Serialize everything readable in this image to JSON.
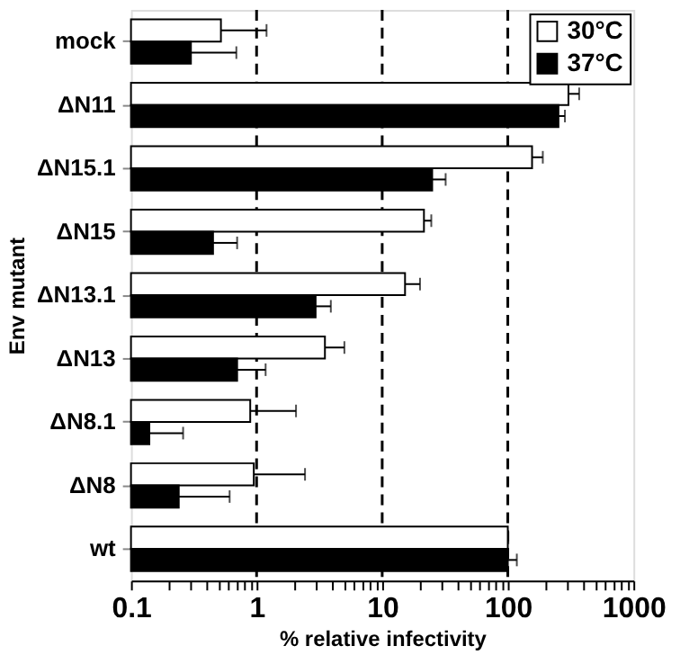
{
  "chart_data": {
    "type": "bar",
    "orientation": "horizontal",
    "xlabel": "% relative infectivity",
    "ylabel": "Env mutant",
    "categories": [
      "mock",
      "ΔN11",
      "ΔN15.1",
      "ΔN15",
      "ΔN13.1",
      "ΔN13",
      "ΔN8.1",
      "ΔN8",
      "wt"
    ],
    "series": [
      {
        "name": "30°C",
        "color": "#ffffff",
        "values": [
          0.52,
          304,
          156,
          21.5,
          15.2,
          3.5,
          0.89,
          0.95,
          100
        ],
        "errors": [
          [
            0.52,
            1.2
          ],
          [
            304,
            370
          ],
          [
            156,
            190
          ],
          [
            21.5,
            24.6
          ],
          [
            15.2,
            20
          ],
          [
            3.5,
            5.0
          ],
          [
            0.89,
            2.06
          ],
          [
            0.95,
            2.43
          ],
          [
            100,
            101
          ]
        ]
      },
      {
        "name": "37°C",
        "color": "#000000",
        "values": [
          0.3,
          253,
          25,
          0.45,
          2.95,
          0.7,
          0.14,
          0.24,
          100
        ],
        "errors": [
          [
            0.3,
            0.69
          ],
          [
            253,
            285
          ],
          [
            25,
            32
          ],
          [
            0.45,
            0.7
          ],
          [
            2.95,
            3.9
          ],
          [
            0.7,
            1.18
          ],
          [
            0.14,
            0.26
          ],
          [
            0.24,
            0.61
          ],
          [
            100,
            118
          ]
        ]
      }
    ],
    "log": "x",
    "xlim": [
      0.1,
      1000
    ],
    "xticks": [
      0.1,
      {
        "value": 0.2,
        "label": null
      },
      {
        "value": 0.3,
        "label": null
      },
      {
        "value": 0.4,
        "label": null
      },
      {
        "value": 0.5,
        "label": null
      },
      {
        "value": 0.6,
        "label": null
      },
      {
        "value": 0.7,
        "label": null
      },
      {
        "value": 0.8,
        "label": null
      },
      {
        "value": 0.9,
        "label": null
      },
      1,
      {
        "value": 2,
        "label": null
      },
      {
        "value": 3,
        "label": null
      },
      {
        "value": 4,
        "label": null
      },
      {
        "value": 5,
        "label": null
      },
      {
        "value": 6,
        "label": null
      },
      {
        "value": 7,
        "label": null
      },
      {
        "value": 8,
        "label": null
      },
      {
        "value": 9,
        "label": null
      },
      10,
      {
        "value": 20,
        "label": null
      },
      {
        "value": 30,
        "label": null
      },
      {
        "value": 40,
        "label": null
      },
      {
        "value": 50,
        "label": null
      },
      {
        "value": 60,
        "label": null
      },
      {
        "value": 70,
        "label": null
      },
      {
        "value": 80,
        "label": null
      },
      {
        "value": 90,
        "label": null
      },
      100,
      {
        "value": 200,
        "label": null
      },
      {
        "value": 300,
        "label": null
      },
      {
        "value": 400,
        "label": null
      },
      {
        "value": 500,
        "label": null
      },
      {
        "value": 600,
        "label": null
      },
      {
        "value": 700,
        "label": null
      },
      {
        "value": 800,
        "label": null
      },
      {
        "value": 900,
        "label": null
      },
      1000
    ],
    "ref_lines": [
      {
        "axis": "x",
        "value": 1,
        "color": "#000000",
        "line_style": "dashed"
      },
      {
        "axis": "x",
        "value": 10,
        "color": "#000000",
        "line_style": "dashed"
      },
      {
        "axis": "x",
        "value": 100,
        "color": "#000000",
        "line_style": "dashed"
      }
    ],
    "grid": false,
    "legend": "top right"
  }
}
